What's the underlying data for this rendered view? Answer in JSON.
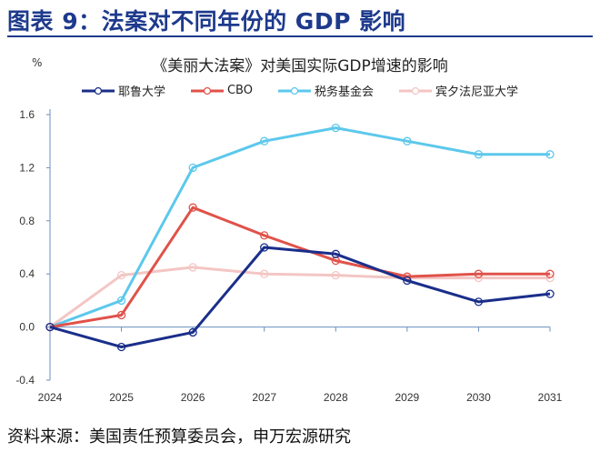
{
  "title": "图表 9：法案对不同年份的 GDP 影响",
  "footer": "资料来源：美国责任预算委员会，申万宏源研究",
  "chart_data": {
    "type": "line",
    "title": "《美丽大法案》对美国实际GDP增速的影响",
    "ylabel": "%",
    "xlabel": "",
    "x": [
      "2024",
      "2025",
      "2026",
      "2027",
      "2028",
      "2029",
      "2030",
      "2031"
    ],
    "ylim": [
      -0.4,
      1.6
    ],
    "yticks": [
      "1.6",
      "1.2",
      "0.8",
      "0.4",
      "0.0",
      "-0.4"
    ],
    "ytick_values": [
      1.6,
      1.2,
      0.8,
      0.4,
      0.0,
      -0.4
    ],
    "grid": false,
    "legend_position": "top",
    "series": [
      {
        "name": "耶鲁大学",
        "color": "#1a2e8a",
        "values": [
          0,
          -0.15,
          -0.04,
          0.6,
          0.55,
          0.35,
          0.19,
          0.25
        ]
      },
      {
        "name": "CBO",
        "color": "#e0524a",
        "values": [
          0,
          0.09,
          0.9,
          0.69,
          0.5,
          0.38,
          0.4,
          0.4
        ]
      },
      {
        "name": "税务基金会",
        "color": "#5cc8ec",
        "values": [
          0,
          0.2,
          1.2,
          1.4,
          1.5,
          1.4,
          1.3,
          1.3
        ]
      },
      {
        "name": "宾夕法尼亚大学",
        "color": "#f3c6c4",
        "values": [
          0,
          0.39,
          0.45,
          0.4,
          0.39,
          0.37,
          0.37,
          0.37
        ]
      }
    ]
  }
}
